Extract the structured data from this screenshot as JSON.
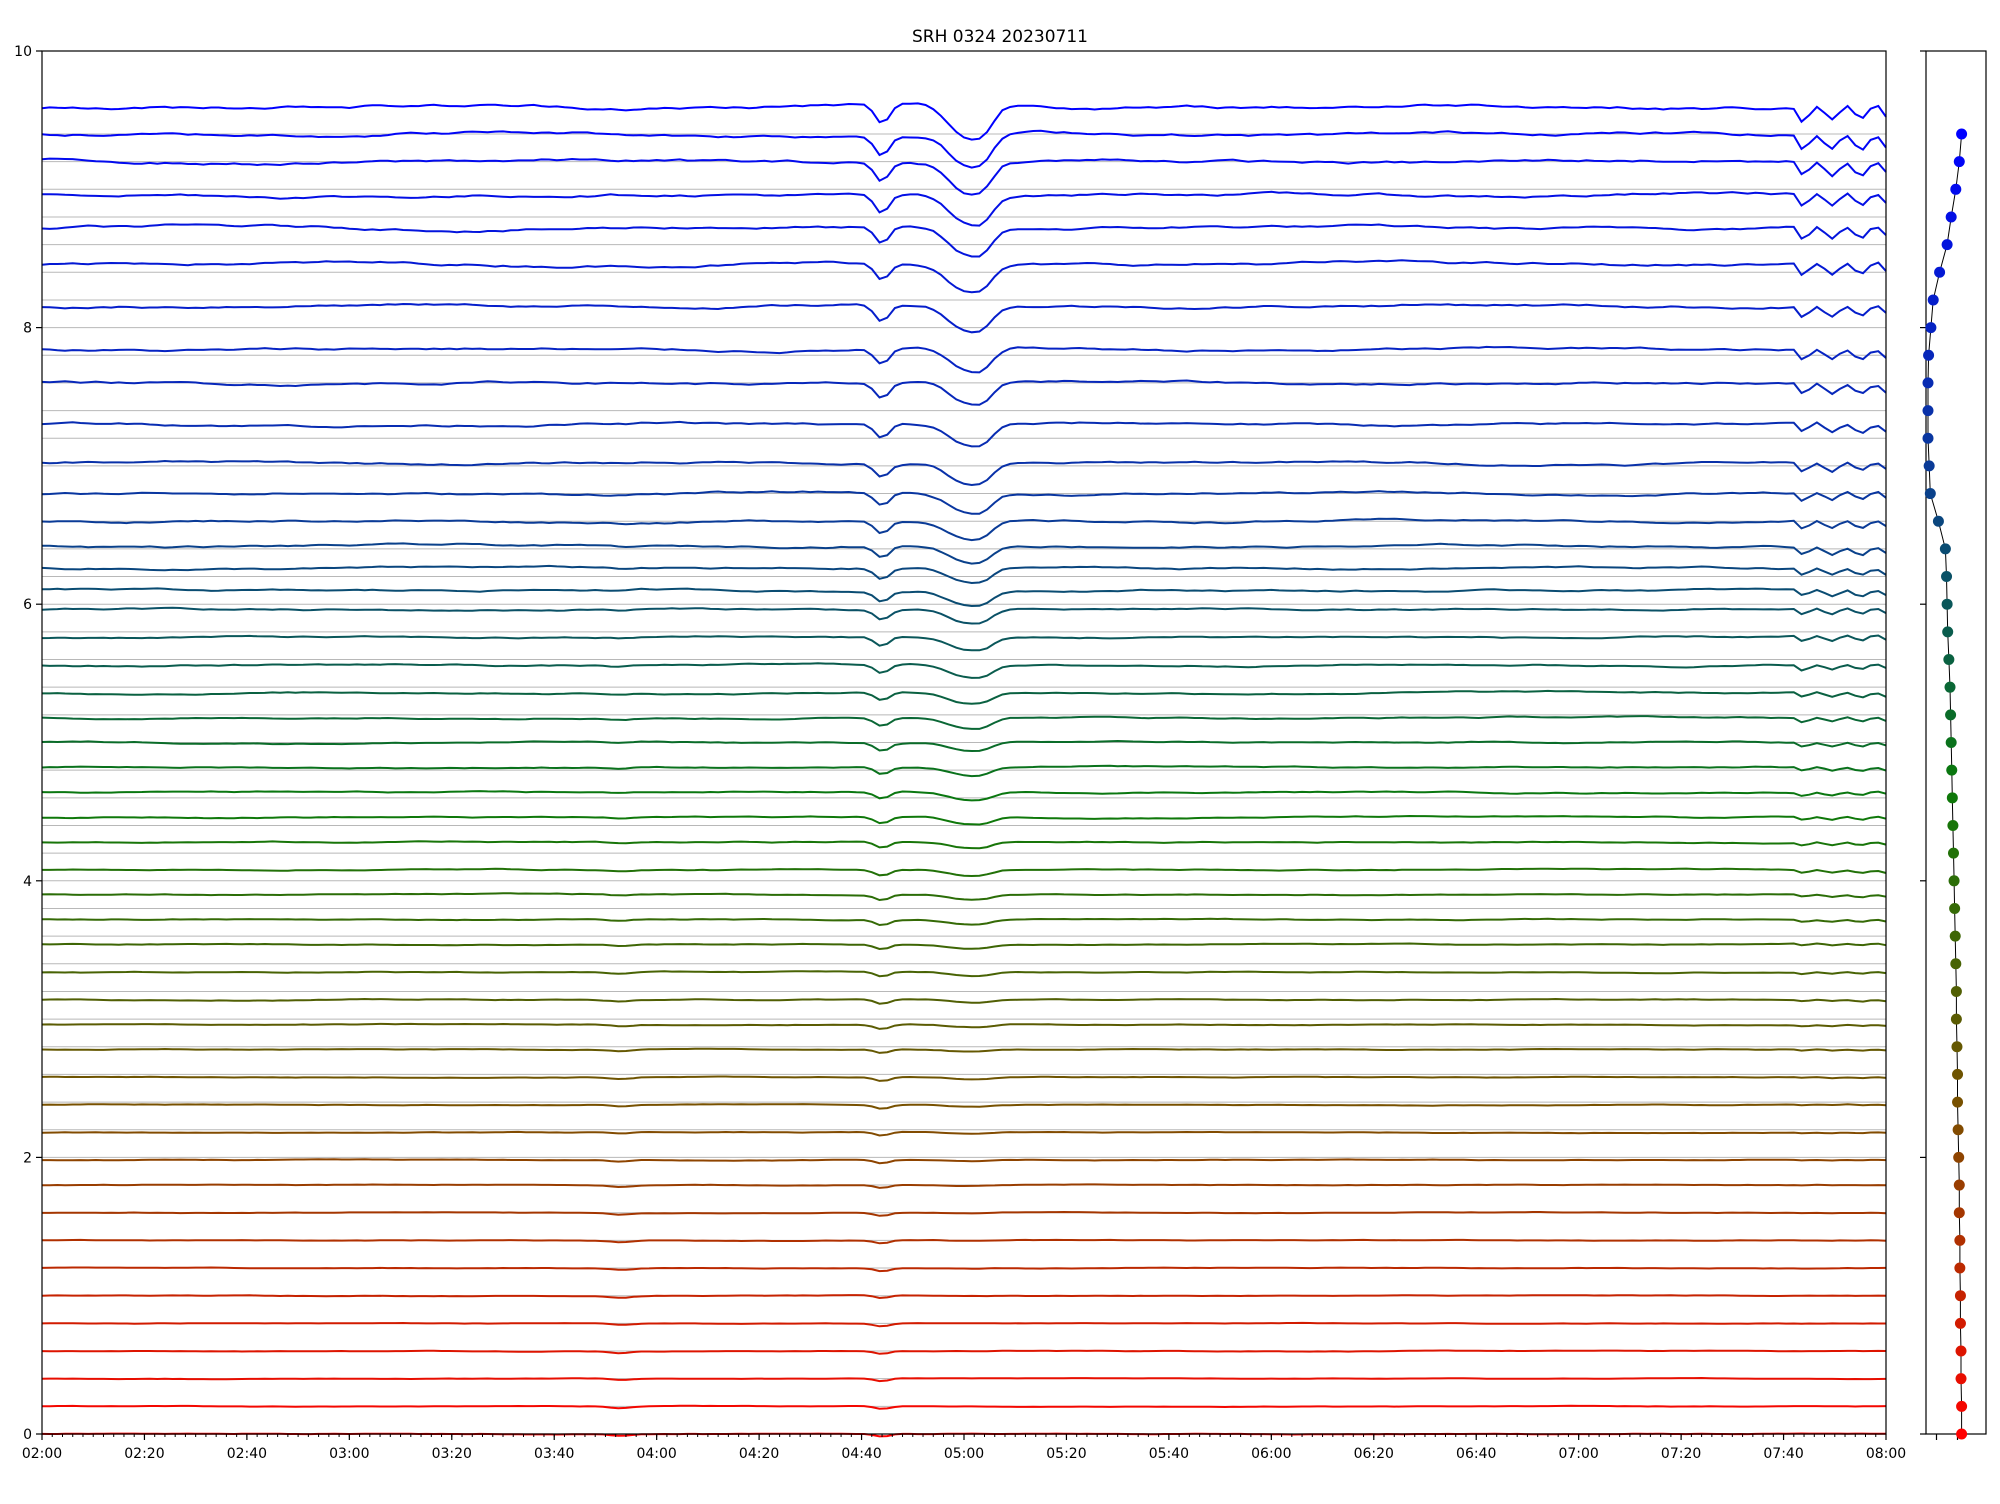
{
  "chart_data": [
    {
      "type": "line",
      "title": "SRH 0324 20230711",
      "xlabel": "",
      "ylabel": "",
      "xlim": [
        "02:00",
        "08:00"
      ],
      "ylim": [
        0,
        10
      ],
      "grid": "horizontal lines at each trace baseline",
      "legend": "none",
      "x_tick_labels": [
        "02:00",
        "02:20",
        "02:40",
        "03:00",
        "03:20",
        "03:40",
        "04:00",
        "04:20",
        "04:40",
        "05:00",
        "05:20",
        "05:40",
        "06:00",
        "06:20",
        "06:40",
        "07:00",
        "07:20",
        "07:40",
        "08:00"
      ],
      "y_tick_labels": [
        "0",
        "2",
        "4",
        "6",
        "8",
        "10"
      ],
      "series_count": 48,
      "trace_spacing": 0.2,
      "trace_offsets": [
        0.0,
        0.2,
        0.4,
        0.6,
        0.8,
        1.0,
        1.2,
        1.4,
        1.6,
        1.8,
        2.0,
        2.2,
        2.4,
        2.6,
        2.8,
        3.0,
        3.2,
        3.4,
        3.6,
        3.8,
        4.0,
        4.2,
        4.4,
        4.6,
        4.8,
        5.0,
        5.2,
        5.4,
        5.6,
        5.8,
        6.0,
        6.2,
        6.4,
        6.6,
        6.8,
        7.0,
        7.2,
        7.4,
        7.6,
        7.8,
        8.0,
        8.2,
        8.4,
        8.6,
        8.8,
        9.0,
        9.2,
        9.4
      ],
      "trace_levels": [
        0.0,
        0.2,
        0.4,
        0.6,
        0.8,
        1.0,
        1.2,
        1.4,
        1.6,
        1.8,
        1.98,
        2.18,
        2.38,
        2.58,
        2.78,
        2.96,
        3.14,
        3.34,
        3.54,
        3.72,
        3.9,
        4.08,
        4.28,
        4.46,
        4.64,
        4.82,
        5.0,
        5.18,
        5.36,
        5.56,
        5.76,
        5.96,
        6.1,
        6.26,
        6.42,
        6.6,
        6.8,
        7.02,
        7.3,
        7.6,
        7.84,
        8.16,
        8.46,
        8.72,
        8.96,
        9.2,
        9.4,
        9.6
      ],
      "color_gradient": [
        "#ff0000",
        "#7a5000",
        "#0a7a0a",
        "#0a3a9a",
        "#0000ff"
      ],
      "events": [
        {
          "time": "04:44",
          "note": "dip"
        },
        {
          "time": "05:00",
          "note": "deep dip"
        },
        {
          "time": "05:04",
          "note": "dip"
        },
        {
          "time": "07:48",
          "note": "oscillation"
        }
      ]
    },
    {
      "type": "scatter",
      "title": "",
      "ylim": [
        0,
        10
      ],
      "x_estimate": [
        0.58,
        0.58,
        0.57,
        0.57,
        0.56,
        0.56,
        0.55,
        0.55,
        0.54,
        0.54,
        0.53,
        0.52,
        0.51,
        0.51,
        0.5,
        0.49,
        0.49,
        0.48,
        0.47,
        0.46,
        0.45,
        0.44,
        0.43,
        0.42,
        0.41,
        0.4,
        0.39,
        0.38,
        0.36,
        0.34,
        0.33,
        0.32,
        0.3,
        0.18,
        0.04,
        0.02,
        0.0,
        0.0,
        0.0,
        0.01,
        0.05,
        0.09,
        0.2,
        0.33,
        0.4,
        0.48,
        0.54,
        0.58
      ],
      "y": [
        0.0,
        0.2,
        0.4,
        0.6,
        0.8,
        1.0,
        1.2,
        1.4,
        1.6,
        1.8,
        2.0,
        2.2,
        2.4,
        2.6,
        2.8,
        3.0,
        3.2,
        3.4,
        3.6,
        3.8,
        4.0,
        4.2,
        4.4,
        4.6,
        4.8,
        5.0,
        5.2,
        5.4,
        5.6,
        5.8,
        6.0,
        6.2,
        6.4,
        6.6,
        6.8,
        7.0,
        7.2,
        7.4,
        7.6,
        7.8,
        8.0,
        8.2,
        8.4,
        8.6,
        8.8,
        9.0,
        9.2,
        9.4
      ]
    }
  ]
}
